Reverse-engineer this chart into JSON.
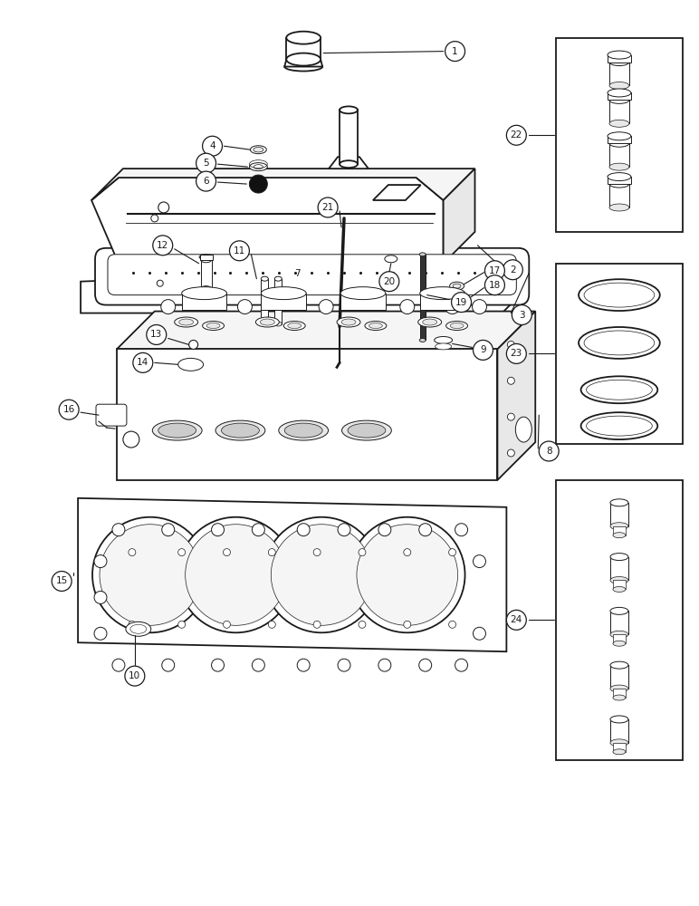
{
  "bg_color": "#ffffff",
  "line_color": "#1a1a1a",
  "fig_width": 7.72,
  "fig_height": 10.0,
  "dpi": 100,
  "lw_main": 1.3,
  "lw_thin": 0.7,
  "lw_thick": 1.8
}
